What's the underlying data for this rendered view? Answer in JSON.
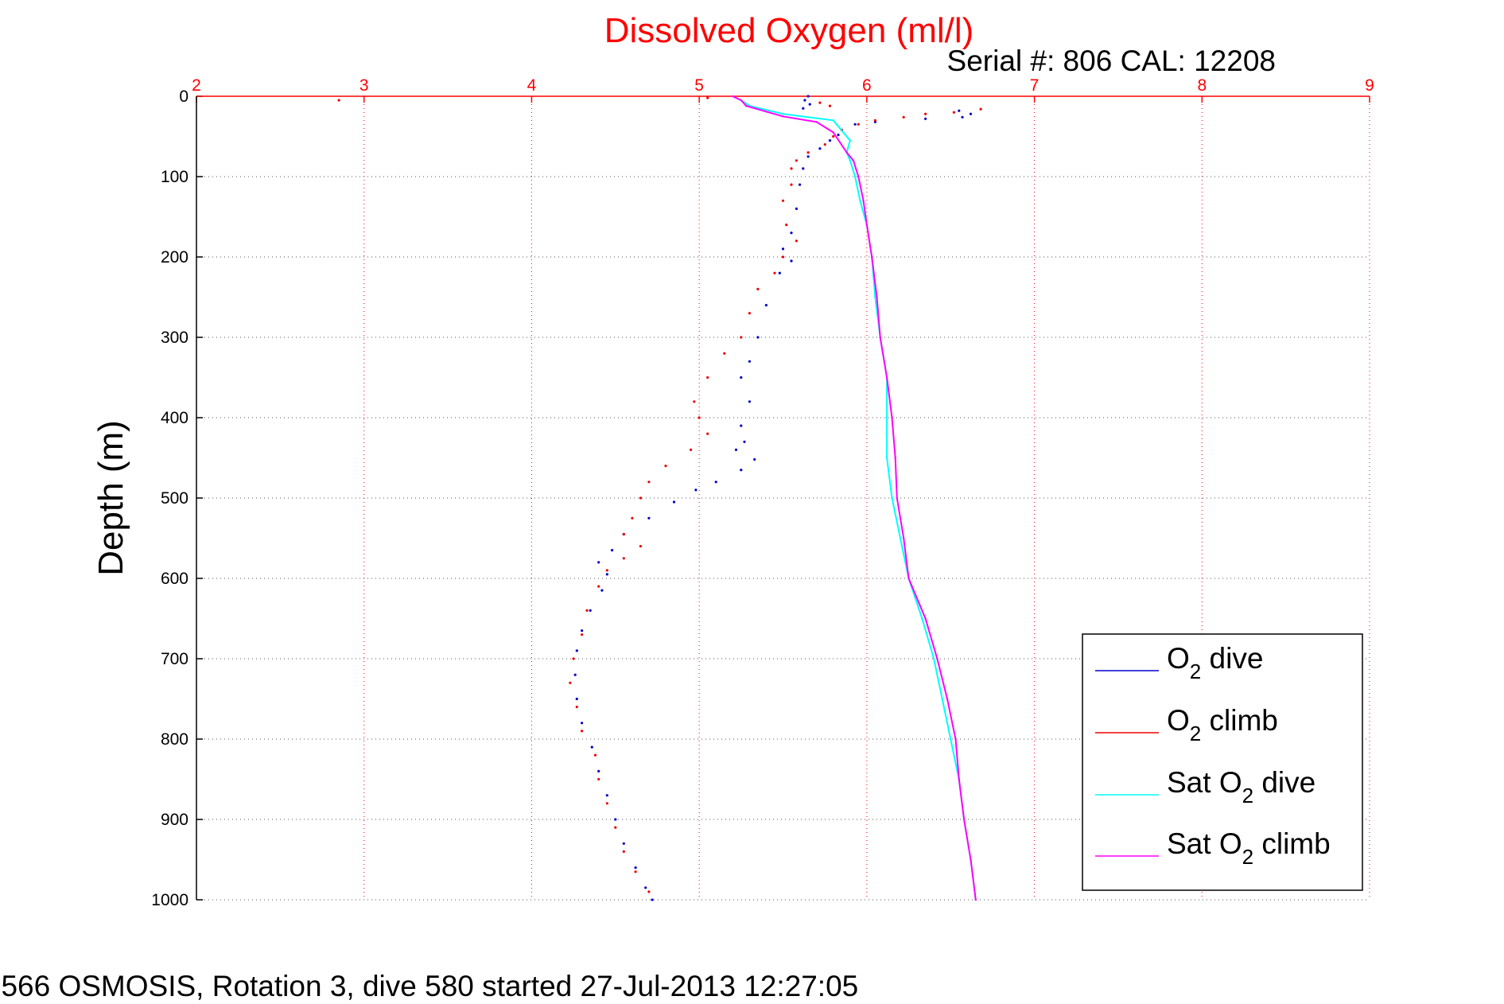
{
  "chart_data": {
    "type": "scatter",
    "title": "Dissolved Oxygen (ml/l)",
    "serial_text": "Serial #: 806  CAL: 12208",
    "ylabel": "Depth (m)",
    "caption": "SG566 OSMOSIS, Rotation 3, dive 580 started 27-Jul-2013 12:27:05",
    "x_axis_position": "top",
    "y_axis_reversed": true,
    "xlim": [
      2,
      9
    ],
    "ylim": [
      0,
      1000
    ],
    "x_ticks": [
      "2",
      "3",
      "4",
      "5",
      "6",
      "7",
      "8",
      "9"
    ],
    "y_ticks": [
      "0",
      "100",
      "200",
      "300",
      "400",
      "500",
      "600",
      "700",
      "800",
      "900",
      "1000"
    ],
    "grid": true,
    "legend_position": "bottom-right",
    "colors": {
      "o2_dive": "#0000cc",
      "o2_climb": "#ee0000",
      "sat_dive": "#00ffff",
      "sat_climb": "#ff00ff",
      "axis_top": "#ff0000",
      "grid": "#555555"
    },
    "series": [
      {
        "key": "o2_dive",
        "name": "O2 dive",
        "style": "dots",
        "points": [
          [
            5.65,
            0
          ],
          [
            5.63,
            5
          ],
          [
            5.66,
            10
          ],
          [
            5.62,
            15
          ],
          [
            6.55,
            18
          ],
          [
            6.62,
            22
          ],
          [
            6.57,
            26
          ],
          [
            6.35,
            28
          ],
          [
            6.05,
            32
          ],
          [
            5.93,
            35
          ],
          [
            5.85,
            42
          ],
          [
            5.83,
            48
          ],
          [
            5.78,
            55
          ],
          [
            5.72,
            65
          ],
          [
            5.65,
            75
          ],
          [
            5.62,
            90
          ],
          [
            5.6,
            110
          ],
          [
            5.58,
            140
          ],
          [
            5.55,
            170
          ],
          [
            5.5,
            190
          ],
          [
            5.55,
            205
          ],
          [
            5.48,
            220
          ],
          [
            5.4,
            260
          ],
          [
            5.35,
            300
          ],
          [
            5.3,
            330
          ],
          [
            5.25,
            350
          ],
          [
            5.3,
            380
          ],
          [
            5.25,
            410
          ],
          [
            5.27,
            430
          ],
          [
            5.22,
            440
          ],
          [
            5.33,
            452
          ],
          [
            5.25,
            465
          ],
          [
            5.1,
            480
          ],
          [
            4.98,
            490
          ],
          [
            4.85,
            505
          ],
          [
            4.7,
            525
          ],
          [
            4.55,
            545
          ],
          [
            4.48,
            565
          ],
          [
            4.4,
            580
          ],
          [
            4.45,
            595
          ],
          [
            4.42,
            615
          ],
          [
            4.35,
            640
          ],
          [
            4.3,
            665
          ],
          [
            4.27,
            690
          ],
          [
            4.26,
            720
          ],
          [
            4.27,
            750
          ],
          [
            4.3,
            780
          ],
          [
            4.36,
            810
          ],
          [
            4.4,
            840
          ],
          [
            4.45,
            870
          ],
          [
            4.5,
            900
          ],
          [
            4.55,
            930
          ],
          [
            4.62,
            960
          ],
          [
            4.68,
            985
          ],
          [
            4.72,
            1000
          ]
        ]
      },
      {
        "key": "o2_climb",
        "name": "O2 climb",
        "style": "dots",
        "points": [
          [
            2.85,
            5
          ],
          [
            5.05,
            2
          ],
          [
            5.72,
            8
          ],
          [
            5.78,
            12
          ],
          [
            6.68,
            16
          ],
          [
            6.52,
            20
          ],
          [
            6.35,
            22
          ],
          [
            6.22,
            26
          ],
          [
            6.05,
            30
          ],
          [
            5.95,
            35
          ],
          [
            5.85,
            42
          ],
          [
            5.8,
            50
          ],
          [
            5.75,
            60
          ],
          [
            5.65,
            70
          ],
          [
            5.58,
            80
          ],
          [
            5.55,
            90
          ],
          [
            5.55,
            110
          ],
          [
            5.5,
            130
          ],
          [
            5.52,
            160
          ],
          [
            5.58,
            180
          ],
          [
            5.5,
            200
          ],
          [
            5.45,
            220
          ],
          [
            5.35,
            240
          ],
          [
            5.3,
            270
          ],
          [
            5.25,
            300
          ],
          [
            5.15,
            320
          ],
          [
            5.05,
            350
          ],
          [
            4.97,
            380
          ],
          [
            5.0,
            400
          ],
          [
            5.05,
            420
          ],
          [
            4.95,
            440
          ],
          [
            4.8,
            460
          ],
          [
            4.7,
            480
          ],
          [
            4.65,
            500
          ],
          [
            4.6,
            525
          ],
          [
            4.55,
            545
          ],
          [
            4.65,
            560
          ],
          [
            4.55,
            575
          ],
          [
            4.45,
            590
          ],
          [
            4.4,
            610
          ],
          [
            4.33,
            640
          ],
          [
            4.3,
            670
          ],
          [
            4.25,
            700
          ],
          [
            4.23,
            730
          ],
          [
            4.27,
            760
          ],
          [
            4.3,
            790
          ],
          [
            4.38,
            820
          ],
          [
            4.4,
            850
          ],
          [
            4.45,
            880
          ],
          [
            4.5,
            910
          ],
          [
            4.55,
            940
          ],
          [
            4.62,
            965
          ],
          [
            4.7,
            990
          ]
        ]
      },
      {
        "key": "sat_dive",
        "name": "Sat O2 dive",
        "style": "line",
        "points": [
          [
            5.2,
            0
          ],
          [
            5.25,
            5
          ],
          [
            5.3,
            12
          ],
          [
            5.5,
            22
          ],
          [
            5.8,
            30
          ],
          [
            5.9,
            55
          ],
          [
            5.88,
            70
          ],
          [
            5.9,
            80
          ],
          [
            5.93,
            100
          ],
          [
            5.96,
            130
          ],
          [
            6.0,
            160
          ],
          [
            6.03,
            200
          ],
          [
            6.05,
            250
          ],
          [
            6.08,
            300
          ],
          [
            6.12,
            350
          ],
          [
            6.12,
            400
          ],
          [
            6.12,
            450
          ],
          [
            6.15,
            500
          ],
          [
            6.2,
            550
          ],
          [
            6.25,
            600
          ],
          [
            6.33,
            650
          ],
          [
            6.4,
            700
          ],
          [
            6.45,
            750
          ],
          [
            6.5,
            800
          ],
          [
            6.55,
            850
          ],
          [
            6.58,
            900
          ],
          [
            6.62,
            950
          ],
          [
            6.65,
            1000
          ]
        ]
      },
      {
        "key": "sat_climb",
        "name": "Sat O2 climb",
        "style": "line",
        "points": [
          [
            5.2,
            0
          ],
          [
            5.25,
            5
          ],
          [
            5.28,
            12
          ],
          [
            5.5,
            25
          ],
          [
            5.7,
            32
          ],
          [
            5.8,
            45
          ],
          [
            5.88,
            70
          ],
          [
            5.92,
            80
          ],
          [
            5.95,
            100
          ],
          [
            5.98,
            130
          ],
          [
            6.0,
            160
          ],
          [
            6.03,
            200
          ],
          [
            6.06,
            250
          ],
          [
            6.08,
            300
          ],
          [
            6.12,
            350
          ],
          [
            6.15,
            400
          ],
          [
            6.17,
            450
          ],
          [
            6.18,
            500
          ],
          [
            6.22,
            550
          ],
          [
            6.25,
            600
          ],
          [
            6.35,
            650
          ],
          [
            6.42,
            700
          ],
          [
            6.48,
            750
          ],
          [
            6.53,
            800
          ],
          [
            6.55,
            850
          ],
          [
            6.58,
            900
          ],
          [
            6.62,
            950
          ],
          [
            6.65,
            1000
          ]
        ]
      }
    ]
  }
}
